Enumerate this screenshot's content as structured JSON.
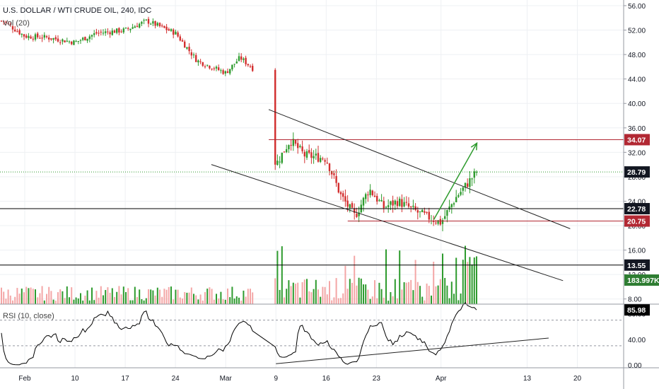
{
  "header": {
    "title": "U.S. DOLLAR / WTI CRUDE OIL, 240, IDC",
    "ma_label": "Vol (20)"
  },
  "price_axis": {
    "ticks": [
      "56.00",
      "52.00",
      "48.00",
      "44.00",
      "40.00",
      "36.00",
      "32.00",
      "28.00",
      "24.00",
      "20.00",
      "16.00",
      "12.00",
      "8.00"
    ],
    "tick_values": [
      56,
      52,
      48,
      44,
      40,
      36,
      32,
      28,
      24,
      20,
      16,
      12,
      8
    ]
  },
  "rsi_axis": {
    "label": "RSI (10, close)",
    "ticks": [
      "80.00",
      "40.00",
      "0.00"
    ],
    "tick_values": [
      80,
      40,
      0
    ]
  },
  "time_axis": {
    "labels": [
      "Feb",
      "10",
      "17",
      "24",
      "Mar",
      "9",
      "16",
      "23",
      "Apr",
      "13",
      "20"
    ],
    "dates": [
      "2020-02-03",
      "2020-02-10",
      "2020-02-17",
      "2020-02-24",
      "2020-03-02",
      "2020-03-09",
      "2020-03-16",
      "2020-03-23",
      "2020-04-01",
      "2020-04-13",
      "2020-04-20"
    ]
  },
  "price_labels": [
    {
      "text": "34.07",
      "value": 34.07,
      "color": "#b22833"
    },
    {
      "text": "28.79",
      "value": 28.79,
      "color": "#131722"
    },
    {
      "text": "22.78",
      "value": 22.78,
      "color": "#131722"
    },
    {
      "text": "20.75",
      "value": 20.75,
      "color": "#b22833"
    },
    {
      "text": "13.55",
      "value": 13.55,
      "color": "#131722"
    },
    {
      "text": "183.997K",
      "value": 183.997,
      "color": "#2e7d32"
    }
  ],
  "rsi_label": {
    "text": "85.98",
    "value": 85.98
  },
  "colors": {
    "up": "#26a69a",
    "up_candle": "#2e9b2e",
    "down": "#d32f2f",
    "volume_up": "#2e9b2e",
    "volume_down": "#f4a6a6",
    "resistance": "#b22833",
    "level": "#000000",
    "channel": "#222222",
    "projection": "#2e9b2e",
    "last_price": "#2e9b2e",
    "rsi": "#000000"
  },
  "chart_data": [
    {
      "type": "candlestick",
      "title": "U.S. DOLLAR / WTI CRUDE OIL, 240, IDC",
      "ylim": [
        7,
        57
      ],
      "x_dates": [
        "2020-02-03",
        "2020-02-10",
        "2020-02-17",
        "2020-02-24",
        "2020-03-02",
        "2020-03-09",
        "2020-03-16",
        "2020-03-23",
        "2020-04-01",
        "2020-04-06"
      ],
      "close_path": [
        {
          "date": "2020-01-31",
          "value": 53.5
        },
        {
          "date": "2020-02-03",
          "value": 51.0
        },
        {
          "date": "2020-02-06",
          "value": 50.8
        },
        {
          "date": "2020-02-10",
          "value": 50.0
        },
        {
          "date": "2020-02-13",
          "value": 51.5
        },
        {
          "date": "2020-02-17",
          "value": 52.0
        },
        {
          "date": "2020-02-20",
          "value": 53.5
        },
        {
          "date": "2020-02-21",
          "value": 53.0
        },
        {
          "date": "2020-02-24",
          "value": 51.5
        },
        {
          "date": "2020-02-27",
          "value": 47.0
        },
        {
          "date": "2020-03-02",
          "value": 45.0
        },
        {
          "date": "2020-03-04",
          "value": 47.5
        },
        {
          "date": "2020-03-06",
          "value": 45.5
        },
        {
          "date": "2020-03-06",
          "value": 41.5
        },
        {
          "date": "2020-03-09",
          "value": 30.0
        },
        {
          "date": "2020-03-11",
          "value": 34.0
        },
        {
          "date": "2020-03-13",
          "value": 31.5
        },
        {
          "date": "2020-03-16",
          "value": 31.0
        },
        {
          "date": "2020-03-18",
          "value": 25.0
        },
        {
          "date": "2020-03-20",
          "value": 21.5
        },
        {
          "date": "2020-03-22",
          "value": 26.0
        },
        {
          "date": "2020-03-24",
          "value": 23.0
        },
        {
          "date": "2020-03-26",
          "value": 24.0
        },
        {
          "date": "2020-03-29",
          "value": 22.0
        },
        {
          "date": "2020-04-01",
          "value": 20.5
        },
        {
          "date": "2020-04-03",
          "value": 24.5
        },
        {
          "date": "2020-04-06",
          "value": 28.8
        }
      ],
      "horizontal_levels": [
        34.07,
        22.78,
        20.75,
        13.55
      ],
      "channel": {
        "upper": [
          {
            "date": "2020-03-08",
            "value": 39.0
          },
          {
            "date": "2020-04-19",
            "value": 19.5
          }
        ],
        "lower": [
          {
            "date": "2020-02-29",
            "value": 30.0
          },
          {
            "date": "2020-04-18",
            "value": 11.0
          }
        ]
      },
      "projection_arrow": [
        {
          "date": "2020-03-31",
          "value": 21.0
        },
        {
          "date": "2020-04-06",
          "value": 33.5
        }
      ]
    },
    {
      "type": "bar",
      "series": [
        {
          "name": "Vol (20)",
          "last_value": 183.997
        }
      ]
    },
    {
      "type": "line",
      "title": "RSI (10, close)",
      "ylim": [
        -5,
        100
      ],
      "levels": [
        70,
        30
      ],
      "last_value": 85.98,
      "trendline": [
        {
          "date": "2020-03-09",
          "value": 2
        },
        {
          "date": "2020-04-16",
          "value": 42
        }
      ]
    }
  ]
}
